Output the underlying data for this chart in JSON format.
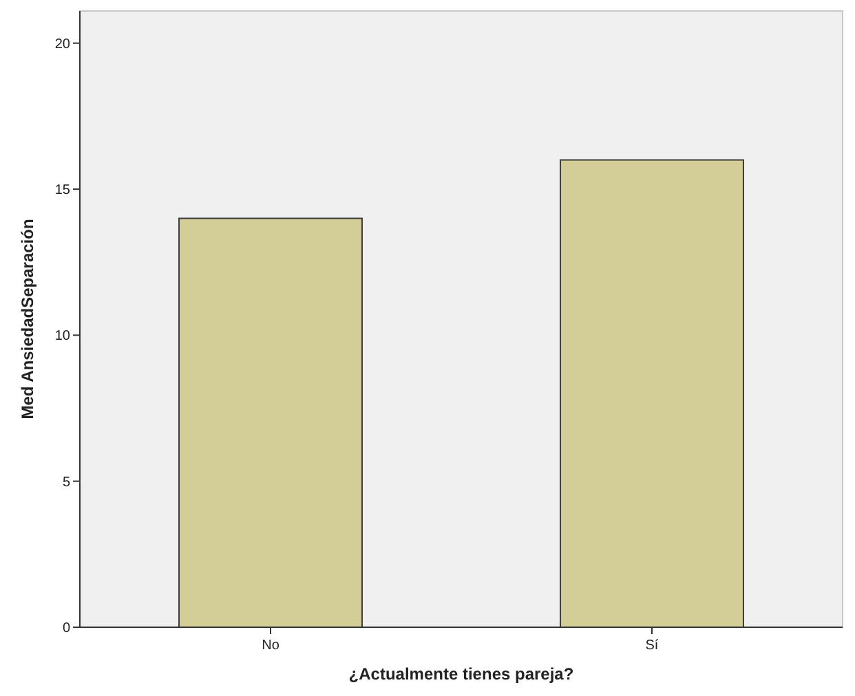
{
  "chart_data": {
    "type": "bar",
    "xlabel": "¿Actualmente tienes pareja?",
    "ylabel": "Med AnsiedadSeparación",
    "categories": [
      "No",
      "Sí"
    ],
    "values": [
      14,
      16
    ],
    "color": "#d3ce97",
    "ylim": [
      0,
      21.1
    ],
    "yticks": [
      0,
      5,
      10,
      15,
      20
    ],
    "grid": false
  }
}
